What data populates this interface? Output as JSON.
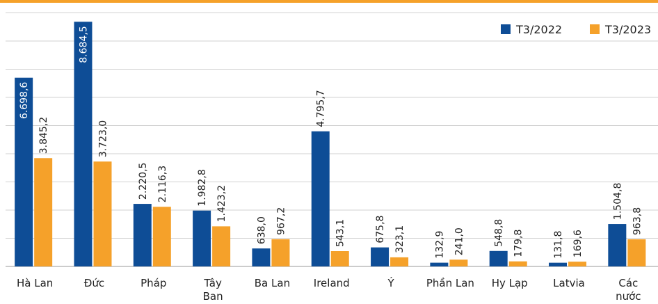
{
  "chart_data": {
    "type": "bar",
    "categories": [
      "Hà Lan",
      "Đức",
      "Pháp",
      "Tây Ban Nha",
      "Ba Lan",
      "Ireland",
      "Ý",
      "Phần Lan",
      "Hy Lạp",
      "Latvia",
      "Các nước khác"
    ],
    "series": [
      {
        "name": "T3/2022",
        "color": "#0e4d96",
        "values": [
          6698.6,
          8684.5,
          2220.5,
          1982.8,
          638.0,
          4795.7,
          675.8,
          132.9,
          548.8,
          131.8,
          1504.8
        ],
        "value_labels": [
          "6.698,6",
          "8.684,5",
          "2.220,5",
          "1.982,8",
          "638,0",
          "4.795,7",
          "675,8",
          "132,9",
          "548,8",
          "131,8",
          "1.504,8"
        ]
      },
      {
        "name": "T3/2023",
        "color": "#f5a12a",
        "values": [
          3845.2,
          3723.0,
          2116.3,
          1423.2,
          967.2,
          543.1,
          323.1,
          241.0,
          179.8,
          169.6,
          963.8
        ],
        "value_labels": [
          "3.845,2",
          "3.723,0",
          "2.116,3",
          "1.423,2",
          "967,2",
          "543,1",
          "323,1",
          "241,0",
          "179,8",
          "169,6",
          "963,8"
        ]
      }
    ],
    "ylim": [
      0,
      9000
    ],
    "yticks": [
      0,
      1000,
      2000,
      3000,
      4000,
      5000,
      6000,
      7000,
      8000,
      9000
    ],
    "grid": true,
    "legend": "top-right"
  }
}
